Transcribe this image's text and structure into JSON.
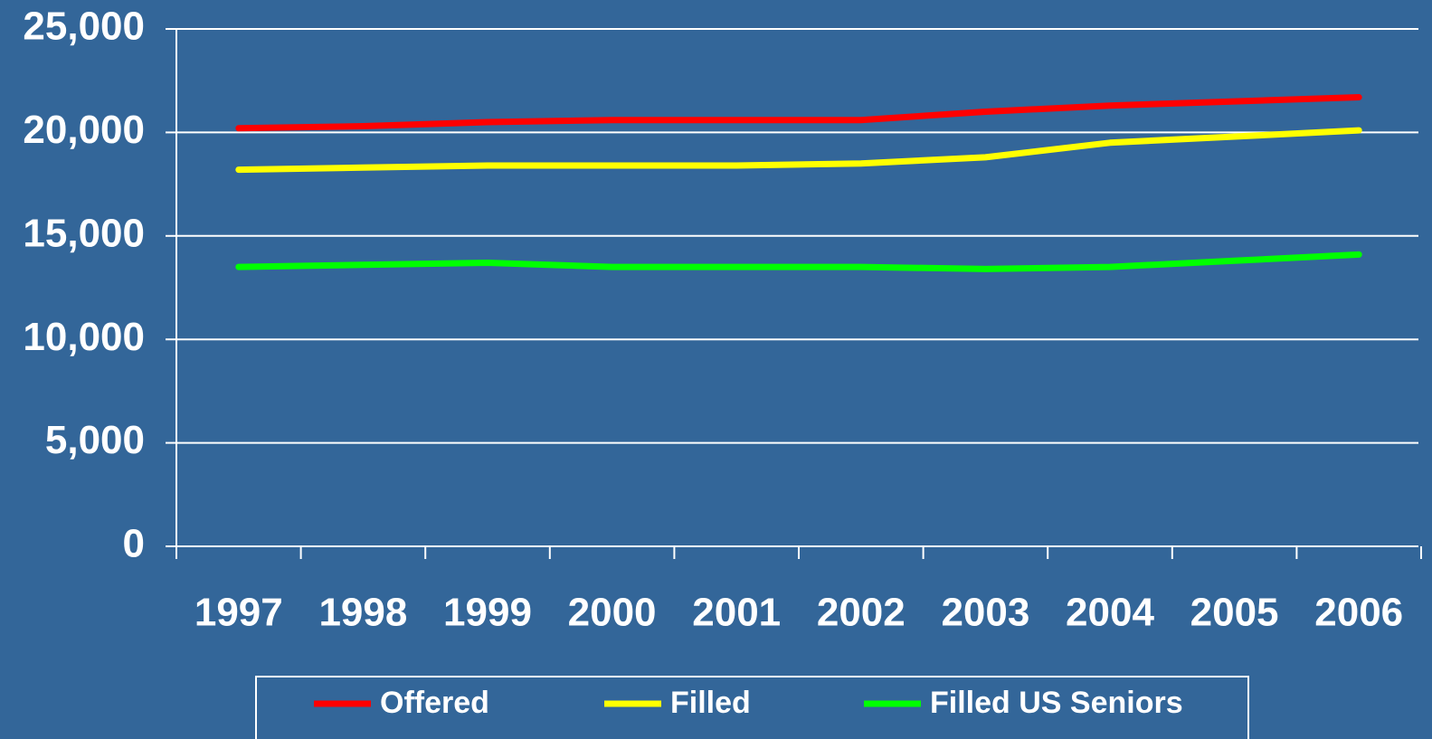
{
  "chart_data": {
    "type": "line",
    "categories": [
      "1997",
      "1998",
      "1999",
      "2000",
      "2001",
      "2002",
      "2003",
      "2004",
      "2005",
      "2006"
    ],
    "series": [
      {
        "name": "Offered",
        "color": "#ff0000",
        "values": [
          20200,
          20300,
          20500,
          20600,
          20600,
          20600,
          21000,
          21300,
          21500,
          21700
        ]
      },
      {
        "name": "Filled",
        "color": "#ffff00",
        "values": [
          18200,
          18300,
          18400,
          18400,
          18400,
          18500,
          18800,
          19500,
          19800,
          20100
        ]
      },
      {
        "name": "Filled US Seniors",
        "color": "#00ff00",
        "values": [
          13500,
          13600,
          13700,
          13500,
          13500,
          13500,
          13400,
          13500,
          13800,
          14100
        ]
      }
    ],
    "ylim": [
      0,
      25000
    ],
    "yticks": [
      0,
      {
        "value": 5000,
        "label": "5,000"
      },
      {
        "value": 10000,
        "label": "10,000"
      },
      {
        "value": 15000,
        "label": "15,000"
      },
      {
        "value": 20000,
        "label": "20,000"
      },
      {
        "value": 25000,
        "label": "25,000"
      }
    ],
    "grid": true,
    "legend": "bottom"
  }
}
